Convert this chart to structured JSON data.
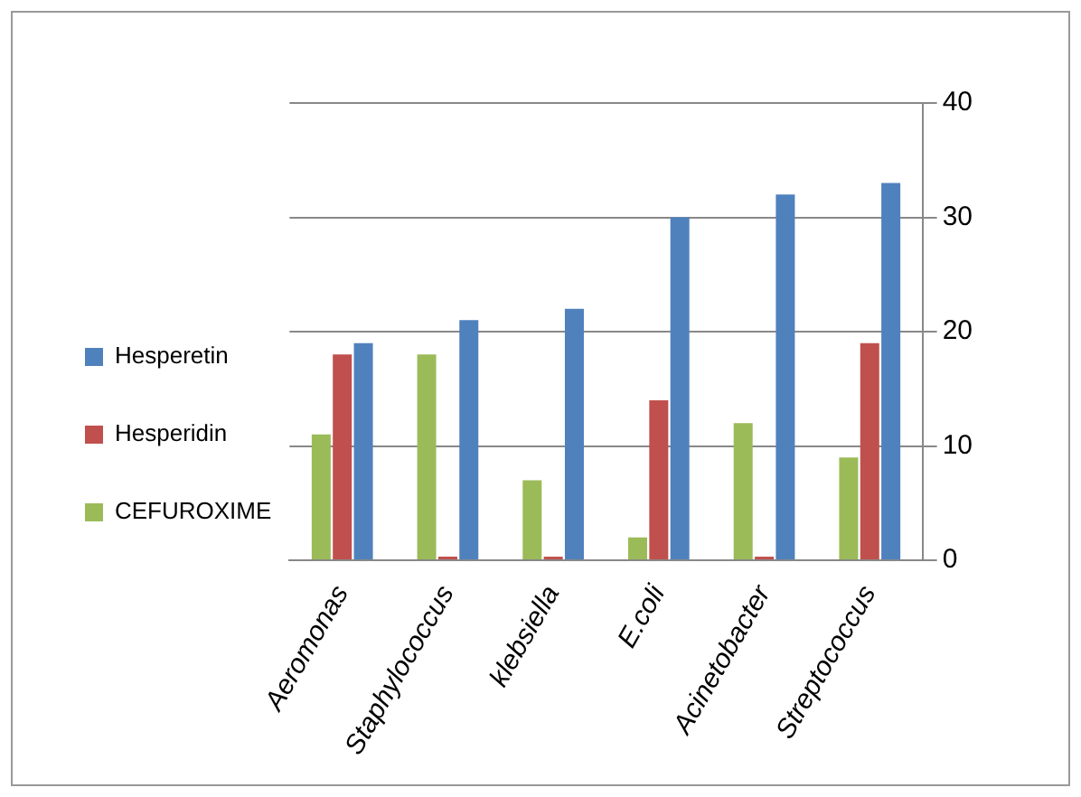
{
  "chart_data": {
    "type": "bar",
    "categories": [
      "Aeromonas",
      "Staphylococcus",
      "klebsiella",
      "E.coli",
      "Acinetobacter",
      "Streptococcus"
    ],
    "series": [
      {
        "name": "CEFUROXIME",
        "color": "#9bbb59",
        "values": [
          11,
          18,
          7,
          2,
          12,
          9
        ]
      },
      {
        "name": "Hesperidin",
        "color": "#c0504d",
        "values": [
          18,
          0,
          0,
          14,
          0,
          19
        ]
      },
      {
        "name": "Hesperetin",
        "color": "#4f81bd",
        "values": [
          19,
          21,
          22,
          30,
          32,
          33
        ]
      }
    ],
    "ylim": [
      0,
      40
    ],
    "yticks": [
      0,
      10,
      20,
      30,
      40
    ],
    "grid": "y",
    "legend": "left"
  }
}
